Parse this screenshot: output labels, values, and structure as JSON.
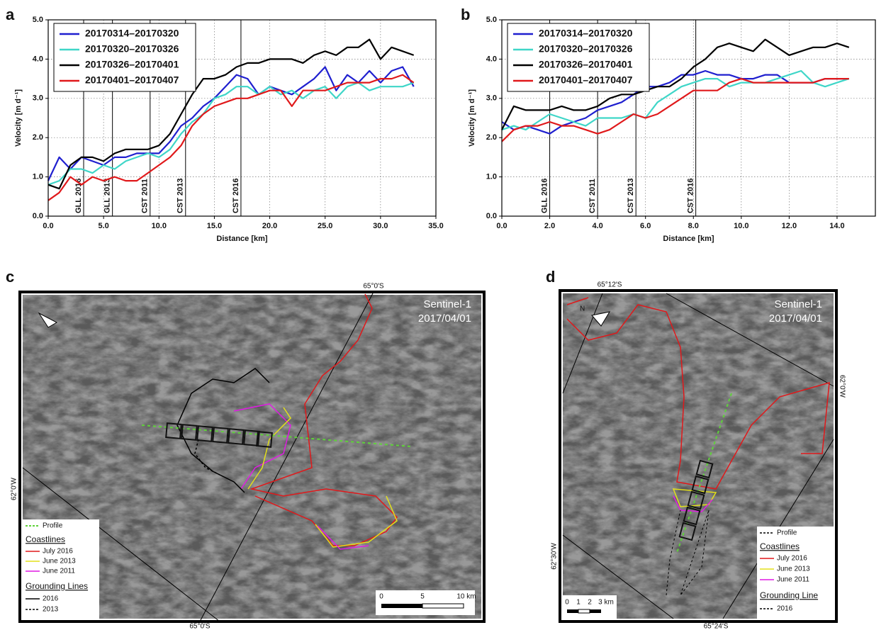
{
  "chart_data": [
    {
      "type": "line",
      "panel": "a",
      "xlabel": "Distance [km]",
      "ylabel": "Velocity [m d⁻¹]",
      "xlim": [
        0,
        35
      ],
      "ylim": [
        0,
        5
      ],
      "xticks": [
        {
          "value": 0,
          "label": "0.0"
        },
        {
          "value": 5,
          "label": "5.0"
        },
        {
          "value": 10,
          "label": "10.0"
        },
        {
          "value": 15,
          "label": "15.0"
        },
        {
          "value": 20,
          "label": "20.0"
        },
        {
          "value": 25,
          "label": "25.0"
        },
        {
          "value": 30,
          "label": "30.0"
        },
        {
          "value": 35,
          "label": "35.0"
        }
      ],
      "yticks": [
        {
          "value": 0,
          "label": "0.0"
        },
        {
          "value": 1,
          "label": "1.0"
        },
        {
          "value": 2,
          "label": "2.0"
        },
        {
          "value": 3,
          "label": "3.0"
        },
        {
          "value": 4,
          "label": "4.0"
        },
        {
          "value": 5,
          "label": "5.0"
        }
      ],
      "grid": true,
      "legend": "upper-left",
      "x": [
        0,
        1,
        2,
        3,
        4,
        5,
        6,
        7,
        8,
        9,
        10,
        11,
        12,
        13,
        14,
        15,
        16,
        17,
        18,
        19,
        20,
        21,
        22,
        23,
        24,
        25,
        26,
        27,
        28,
        29,
        30,
        31,
        32,
        33
      ],
      "series": [
        {
          "name": "20170314–20170320",
          "color": "#1f1fcf",
          "values": [
            0.9,
            1.5,
            1.2,
            1.5,
            1.4,
            1.3,
            1.5,
            1.5,
            1.6,
            1.6,
            1.6,
            1.9,
            2.3,
            2.5,
            2.8,
            3.0,
            3.3,
            3.6,
            3.5,
            3.1,
            3.3,
            3.2,
            3.1,
            3.3,
            3.5,
            3.8,
            3.2,
            3.6,
            3.4,
            3.7,
            3.4,
            3.7,
            3.8,
            3.3
          ]
        },
        {
          "name": "20170320–20170326",
          "color": "#3fd6c8",
          "values": [
            0.8,
            0.9,
            1.2,
            1.2,
            1.1,
            1.3,
            1.2,
            1.4,
            1.5,
            1.6,
            1.5,
            1.7,
            2.1,
            2.4,
            2.6,
            3.0,
            3.1,
            3.3,
            3.3,
            3.1,
            3.3,
            3.1,
            3.2,
            3.0,
            3.2,
            3.3,
            3.0,
            3.3,
            3.4,
            3.2,
            3.3,
            3.3,
            3.3,
            3.4
          ]
        },
        {
          "name": "20170326–20170401",
          "color": "#000000",
          "values": [
            0.8,
            0.7,
            1.3,
            1.5,
            1.5,
            1.4,
            1.6,
            1.7,
            1.7,
            1.7,
            1.8,
            2.1,
            2.6,
            3.1,
            3.5,
            3.5,
            3.6,
            3.8,
            3.9,
            3.9,
            4.0,
            4.0,
            4.0,
            3.9,
            4.1,
            4.2,
            4.1,
            4.3,
            4.3,
            4.5,
            4.0,
            4.3,
            4.2,
            4.1
          ]
        },
        {
          "name": "20170401–20170407",
          "color": "#e0191b",
          "values": [
            0.4,
            0.6,
            1.0,
            0.8,
            1.0,
            0.9,
            1.0,
            0.9,
            0.9,
            1.1,
            1.3,
            1.5,
            1.8,
            2.3,
            2.6,
            2.8,
            2.9,
            3.0,
            3.0,
            3.1,
            3.2,
            3.2,
            2.8,
            3.2,
            3.2,
            3.2,
            3.3,
            3.4,
            3.4,
            3.4,
            3.5,
            3.5,
            3.6,
            3.4
          ]
        }
      ],
      "annotations": [
        {
          "x": 3.2,
          "label": "GLL 2016"
        },
        {
          "x": 5.8,
          "label": "GLL 2013"
        },
        {
          "x": 9.2,
          "label": "CST 2011"
        },
        {
          "x": 12.4,
          "label": "CST 2013"
        },
        {
          "x": 17.4,
          "label": "CST 2016"
        }
      ]
    },
    {
      "type": "line",
      "panel": "b",
      "xlabel": "Distance [km]",
      "ylabel": "Velocity [m d⁻¹]",
      "xlim": [
        0,
        15.6
      ],
      "ylim": [
        0,
        5
      ],
      "xticks": [
        {
          "value": 0,
          "label": "0.0"
        },
        {
          "value": 2,
          "label": "2.0"
        },
        {
          "value": 4,
          "label": "4.0"
        },
        {
          "value": 6,
          "label": "6.0"
        },
        {
          "value": 8,
          "label": "8.0"
        },
        {
          "value": 10,
          "label": "10.0"
        },
        {
          "value": 12,
          "label": "12.0"
        },
        {
          "value": 14,
          "label": "14.0"
        }
      ],
      "yticks": [
        {
          "value": 0,
          "label": "0.0"
        },
        {
          "value": 1,
          "label": "1.0"
        },
        {
          "value": 2,
          "label": "2.0"
        },
        {
          "value": 3,
          "label": "3.0"
        },
        {
          "value": 4,
          "label": "4.0"
        },
        {
          "value": 5,
          "label": "5.0"
        }
      ],
      "grid": true,
      "legend": "upper-left",
      "x": [
        0,
        0.5,
        1,
        1.5,
        2,
        2.5,
        3,
        3.5,
        4,
        4.5,
        5,
        5.5,
        6,
        6.5,
        7,
        7.5,
        8,
        8.5,
        9,
        9.5,
        10,
        10.5,
        11,
        11.5,
        12,
        12.5,
        13,
        13.5,
        14,
        14.5
      ],
      "series": [
        {
          "name": "20170314–20170320",
          "color": "#1f1fcf",
          "values": [
            2.4,
            2.2,
            2.3,
            2.2,
            2.1,
            2.3,
            2.4,
            2.5,
            2.7,
            2.8,
            2.9,
            3.1,
            3.3,
            3.3,
            3.4,
            3.6,
            3.6,
            3.7,
            3.6,
            3.6,
            3.5,
            3.5,
            3.6,
            3.6,
            3.4,
            3.4,
            3.4,
            3.5,
            3.5,
            3.5
          ]
        },
        {
          "name": "20170320–20170326",
          "color": "#3fd6c8",
          "values": [
            2.2,
            2.3,
            2.2,
            2.4,
            2.6,
            2.5,
            2.4,
            2.3,
            2.5,
            2.5,
            2.5,
            2.6,
            2.5,
            2.9,
            3.1,
            3.3,
            3.4,
            3.5,
            3.5,
            3.3,
            3.4,
            3.4,
            3.4,
            3.5,
            3.6,
            3.7,
            3.4,
            3.3,
            3.4,
            3.5
          ]
        },
        {
          "name": "20170326–20170401",
          "color": "#000000",
          "values": [
            2.2,
            2.8,
            2.7,
            2.7,
            2.7,
            2.8,
            2.7,
            2.7,
            2.8,
            3.0,
            3.1,
            3.1,
            3.2,
            3.3,
            3.3,
            3.5,
            3.8,
            4.0,
            4.3,
            4.4,
            4.3,
            4.2,
            4.5,
            4.3,
            4.1,
            4.2,
            4.3,
            4.3,
            4.4,
            4.3
          ]
        },
        {
          "name": "20170401–20170407",
          "color": "#e0191b",
          "values": [
            1.9,
            2.2,
            2.3,
            2.3,
            2.4,
            2.3,
            2.3,
            2.2,
            2.1,
            2.2,
            2.4,
            2.6,
            2.5,
            2.6,
            2.8,
            3.0,
            3.2,
            3.2,
            3.2,
            3.4,
            3.5,
            3.4,
            3.4,
            3.4,
            3.4,
            3.4,
            3.4,
            3.5,
            3.5,
            3.5
          ]
        }
      ],
      "annotations": [
        {
          "x": 2.0,
          "label": "GLL 2016"
        },
        {
          "x": 4.0,
          "label": "CST 2011"
        },
        {
          "x": 5.6,
          "label": "CST 2013"
        },
        {
          "x": 8.1,
          "label": "CST 2016"
        }
      ]
    }
  ],
  "maps": [
    {
      "panel": "c",
      "sensor": "Sentinel-1",
      "date": "2017/04/01",
      "lat_top": "65°0′S",
      "lat_bottom": "65°0′S",
      "lon_left": "62°0′W",
      "legend": {
        "profile": "Profile",
        "coast_title": "Coastlines",
        "coast": [
          "July 2016",
          "June 2013",
          "June 2011"
        ],
        "gl_title": "Grounding Lines",
        "gl": [
          "2016",
          "2013"
        ]
      },
      "scale": [
        "0",
        "5",
        "10 km"
      ]
    },
    {
      "panel": "d",
      "sensor": "Sentinel-1",
      "date": "2017/04/01",
      "lat_top": "65°12′S",
      "lat_bottom": "65°24′S",
      "lon_right": "62°0′W",
      "lon_left": "62°30′W",
      "north": "N",
      "legend": {
        "profile": "Profile",
        "coast_title": "Coastlines",
        "coast": [
          "July 2016",
          "June 2013",
          "June 2011"
        ],
        "gl_title": "Grounding Line",
        "gl": [
          "2016"
        ]
      },
      "scale": [
        "0",
        "1",
        "2",
        "3 km"
      ]
    }
  ]
}
